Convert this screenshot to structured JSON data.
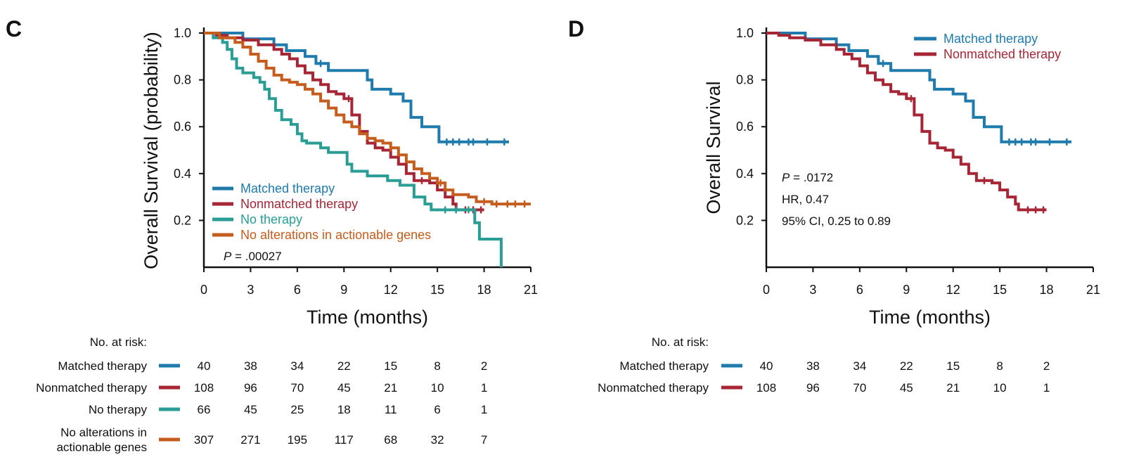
{
  "colors": {
    "matched": "#1f7bab",
    "nonmatched": "#a72635",
    "no_therapy": "#2a9d94",
    "no_alterations": "#c55d1e"
  },
  "chart_data": [
    {
      "type": "line",
      "panel": "C",
      "xlabel": "Time (months)",
      "ylabel": "Overall Survival (probability)",
      "xlim": [
        0,
        21
      ],
      "ylim": [
        0,
        1.0
      ],
      "x_ticks": [
        "0",
        "3",
        "6",
        "9",
        "12",
        "15",
        "18",
        "21"
      ],
      "y_ticks": [
        "0.2",
        "0.4",
        "0.6",
        "0.8",
        "1.0"
      ],
      "annotation": {
        "p_label": "P",
        "p_value": " = .00027"
      },
      "legend_position": "bottom-left",
      "series": [
        {
          "name": "Matched therapy",
          "color_key": "matched",
          "steps": [
            [
              0,
              1.0
            ],
            [
              2.5,
              0.975
            ],
            [
              4.5,
              0.95
            ],
            [
              5.3,
              0.925
            ],
            [
              6.5,
              0.9
            ],
            [
              7.2,
              0.87
            ],
            [
              8.0,
              0.84
            ],
            [
              10.5,
              0.8
            ],
            [
              10.8,
              0.76
            ],
            [
              12.0,
              0.74
            ],
            [
              12.8,
              0.71
            ],
            [
              13.3,
              0.64
            ],
            [
              14.0,
              0.6
            ],
            [
              15.1,
              0.535
            ],
            [
              19.6,
              0.535
            ]
          ],
          "censors": [
            7.5,
            15.6,
            16.0,
            16.4,
            17.0,
            17.3,
            18.2,
            19.3
          ]
        },
        {
          "name": "Nonmatched therapy",
          "color_key": "nonmatched",
          "steps": [
            [
              0,
              1.0
            ],
            [
              0.8,
              0.99
            ],
            [
              1.5,
              0.98
            ],
            [
              2.5,
              0.97
            ],
            [
              3.5,
              0.95
            ],
            [
              4.5,
              0.93
            ],
            [
              5.0,
              0.91
            ],
            [
              5.5,
              0.89
            ],
            [
              6.0,
              0.86
            ],
            [
              6.5,
              0.83
            ],
            [
              7.0,
              0.8
            ],
            [
              7.5,
              0.78
            ],
            [
              8.0,
              0.75
            ],
            [
              8.5,
              0.74
            ],
            [
              9.0,
              0.72
            ],
            [
              9.5,
              0.65
            ],
            [
              10.0,
              0.58
            ],
            [
              10.5,
              0.53
            ],
            [
              11.0,
              0.51
            ],
            [
              11.5,
              0.5
            ],
            [
              12.0,
              0.47
            ],
            [
              12.5,
              0.44
            ],
            [
              13.0,
              0.4
            ],
            [
              13.5,
              0.37
            ],
            [
              14.5,
              0.36
            ],
            [
              15.0,
              0.33
            ],
            [
              15.5,
              0.3
            ],
            [
              16.0,
              0.27
            ],
            [
              16.2,
              0.245
            ],
            [
              18.0,
              0.245
            ]
          ],
          "censors": [
            9.3,
            14.0,
            16.8,
            17.3,
            17.8
          ]
        },
        {
          "name": "No therapy",
          "color_key": "no_therapy",
          "steps": [
            [
              0,
              1.0
            ],
            [
              0.6,
              0.98
            ],
            [
              1.2,
              0.96
            ],
            [
              1.5,
              0.93
            ],
            [
              1.8,
              0.89
            ],
            [
              2.1,
              0.85
            ],
            [
              2.5,
              0.83
            ],
            [
              3.2,
              0.81
            ],
            [
              3.6,
              0.79
            ],
            [
              3.9,
              0.76
            ],
            [
              4.2,
              0.72
            ],
            [
              4.6,
              0.67
            ],
            [
              5.0,
              0.63
            ],
            [
              5.6,
              0.61
            ],
            [
              6.0,
              0.57
            ],
            [
              6.3,
              0.54
            ],
            [
              6.6,
              0.53
            ],
            [
              7.5,
              0.51
            ],
            [
              8.0,
              0.49
            ],
            [
              9.2,
              0.44
            ],
            [
              9.5,
              0.41
            ],
            [
              10.5,
              0.39
            ],
            [
              11.8,
              0.37
            ],
            [
              12.6,
              0.35
            ],
            [
              13.5,
              0.3
            ],
            [
              14.2,
              0.27
            ],
            [
              14.6,
              0.245
            ],
            [
              17.4,
              0.19
            ],
            [
              17.7,
              0.12
            ],
            [
              18.8,
              0.12
            ],
            [
              19.1,
              0.0
            ]
          ],
          "censors": [
            15.5,
            16.2,
            17.0
          ]
        },
        {
          "name": "No alterations in actionable genes",
          "color_key": "no_alterations",
          "steps": [
            [
              0,
              1.0
            ],
            [
              1.0,
              0.98
            ],
            [
              2.0,
              0.96
            ],
            [
              2.5,
              0.94
            ],
            [
              3.0,
              0.91
            ],
            [
              3.5,
              0.88
            ],
            [
              4.0,
              0.85
            ],
            [
              4.5,
              0.82
            ],
            [
              5.0,
              0.8
            ],
            [
              5.5,
              0.79
            ],
            [
              6.0,
              0.78
            ],
            [
              6.5,
              0.76
            ],
            [
              7.0,
              0.74
            ],
            [
              7.5,
              0.71
            ],
            [
              8.0,
              0.68
            ],
            [
              8.5,
              0.65
            ],
            [
              9.0,
              0.62
            ],
            [
              9.5,
              0.6
            ],
            [
              10.0,
              0.57
            ],
            [
              10.5,
              0.55
            ],
            [
              11.0,
              0.54
            ],
            [
              11.5,
              0.53
            ],
            [
              12.0,
              0.51
            ],
            [
              12.5,
              0.48
            ],
            [
              13.0,
              0.45
            ],
            [
              13.5,
              0.42
            ],
            [
              14.0,
              0.4
            ],
            [
              14.5,
              0.38
            ],
            [
              15.0,
              0.36
            ],
            [
              15.5,
              0.33
            ],
            [
              16.0,
              0.31
            ],
            [
              17.0,
              0.3
            ],
            [
              17.5,
              0.28
            ],
            [
              18.5,
              0.27
            ],
            [
              21.0,
              0.27
            ]
          ],
          "censors": [
            12.0,
            15.2,
            18.0,
            18.8,
            19.5,
            20.0,
            20.6
          ]
        }
      ],
      "risk_table": {
        "header": "No. at risk:",
        "rows": [
          {
            "label_lines": [
              "Matched therapy"
            ],
            "color_key": "matched",
            "values": [
              "40",
              "38",
              "34",
              "22",
              "15",
              "8",
              "2"
            ]
          },
          {
            "label_lines": [
              "Nonmatched therapy"
            ],
            "color_key": "nonmatched",
            "values": [
              "108",
              "96",
              "70",
              "45",
              "21",
              "10",
              "1"
            ]
          },
          {
            "label_lines": [
              "No therapy"
            ],
            "color_key": "no_therapy",
            "values": [
              "66",
              "45",
              "25",
              "18",
              "11",
              "6",
              "1"
            ]
          },
          {
            "label_lines": [
              "No alterations in",
              "actionable genes"
            ],
            "color_key": "no_alterations",
            "values": [
              "307",
              "271",
              "195",
              "117",
              "68",
              "32",
              "7"
            ]
          }
        ]
      }
    },
    {
      "type": "line",
      "panel": "D",
      "xlabel": "Time (months)",
      "ylabel": "Overall Survival",
      "xlim": [
        0,
        21
      ],
      "ylim": [
        0,
        1.0
      ],
      "x_ticks": [
        "0",
        "3",
        "6",
        "9",
        "12",
        "15",
        "18",
        "21"
      ],
      "y_ticks": [
        "0.2",
        "0.4",
        "0.6",
        "0.8",
        "1.0"
      ],
      "annotation": {
        "p_label": "P",
        "p_value": " = .0172",
        "hr": "HR, 0.47",
        "ci": "95% CI, 0.25 to 0.89"
      },
      "legend_position": "top-right",
      "series": [
        {
          "name": "Matched therapy",
          "color_key": "matched",
          "steps": [
            [
              0,
              1.0
            ],
            [
              2.5,
              0.975
            ],
            [
              4.5,
              0.95
            ],
            [
              5.3,
              0.925
            ],
            [
              6.5,
              0.9
            ],
            [
              7.2,
              0.87
            ],
            [
              8.0,
              0.84
            ],
            [
              10.5,
              0.8
            ],
            [
              10.8,
              0.76
            ],
            [
              12.0,
              0.74
            ],
            [
              12.8,
              0.71
            ],
            [
              13.3,
              0.64
            ],
            [
              14.0,
              0.6
            ],
            [
              15.1,
              0.535
            ],
            [
              19.6,
              0.535
            ]
          ],
          "censors": [
            7.5,
            15.6,
            16.0,
            16.4,
            17.0,
            17.3,
            18.2,
            19.3
          ]
        },
        {
          "name": "Nonmatched therapy",
          "color_key": "nonmatched",
          "steps": [
            [
              0,
              1.0
            ],
            [
              0.8,
              0.99
            ],
            [
              1.5,
              0.98
            ],
            [
              2.5,
              0.97
            ],
            [
              3.5,
              0.95
            ],
            [
              4.5,
              0.93
            ],
            [
              5.0,
              0.91
            ],
            [
              5.5,
              0.89
            ],
            [
              6.0,
              0.86
            ],
            [
              6.5,
              0.83
            ],
            [
              7.0,
              0.8
            ],
            [
              7.5,
              0.78
            ],
            [
              8.0,
              0.75
            ],
            [
              8.5,
              0.74
            ],
            [
              9.0,
              0.72
            ],
            [
              9.5,
              0.65
            ],
            [
              10.0,
              0.58
            ],
            [
              10.5,
              0.53
            ],
            [
              11.0,
              0.51
            ],
            [
              11.5,
              0.5
            ],
            [
              12.0,
              0.47
            ],
            [
              12.5,
              0.44
            ],
            [
              13.0,
              0.4
            ],
            [
              13.5,
              0.37
            ],
            [
              14.5,
              0.36
            ],
            [
              15.0,
              0.33
            ],
            [
              15.5,
              0.3
            ],
            [
              16.0,
              0.27
            ],
            [
              16.2,
              0.245
            ],
            [
              18.0,
              0.245
            ]
          ],
          "censors": [
            9.3,
            14.0,
            16.8,
            17.3,
            17.8
          ]
        }
      ],
      "risk_table": {
        "header": "No. at risk:",
        "rows": [
          {
            "label_lines": [
              "Matched therapy"
            ],
            "color_key": "matched",
            "values": [
              "40",
              "38",
              "34",
              "22",
              "15",
              "8",
              "2"
            ]
          },
          {
            "label_lines": [
              "Nonmatched therapy"
            ],
            "color_key": "nonmatched",
            "values": [
              "108",
              "96",
              "70",
              "45",
              "21",
              "10",
              "1"
            ]
          }
        ]
      }
    }
  ]
}
